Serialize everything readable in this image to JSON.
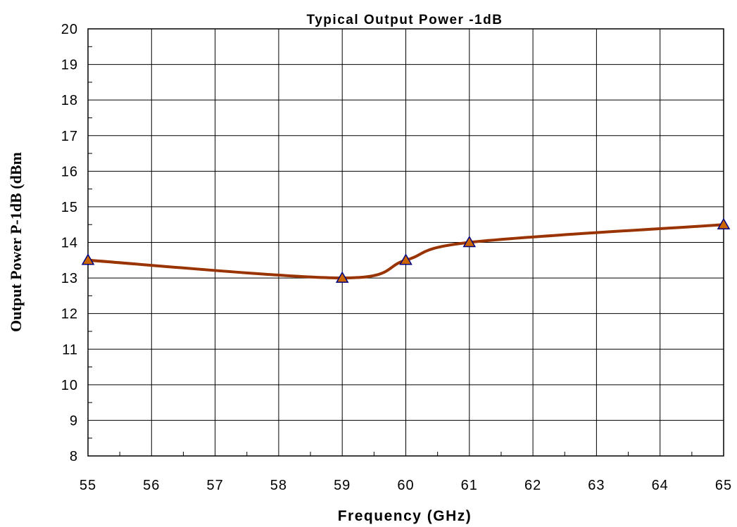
{
  "chart_data": {
    "type": "line",
    "title": "Typical Output Power -1dB",
    "xlabel": "Frequency (GHz)",
    "ylabel": "Output Power P-1dB (dBm",
    "xlim": [
      55,
      65
    ],
    "ylim": [
      8,
      20
    ],
    "x_ticks": [
      "55",
      "56",
      "57",
      "58",
      "59",
      "60",
      "61",
      "62",
      "63",
      "64",
      "65"
    ],
    "y_ticks": [
      "8",
      "9",
      "10",
      "11",
      "12",
      "13",
      "14",
      "15",
      "16",
      "17",
      "18",
      "19",
      "20"
    ],
    "grid": true,
    "legend": "none",
    "series": [
      {
        "color": "#993300",
        "marker": "triangle",
        "marker_fill": "#cc6600",
        "marker_edge": "#000080",
        "points": [
          {
            "x": 55,
            "y": 13.5
          },
          {
            "x": 59,
            "y": 13.0
          },
          {
            "x": 60,
            "y": 13.5
          },
          {
            "x": 61,
            "y": 14.0
          },
          {
            "x": 65,
            "y": 14.5
          }
        ]
      }
    ]
  }
}
